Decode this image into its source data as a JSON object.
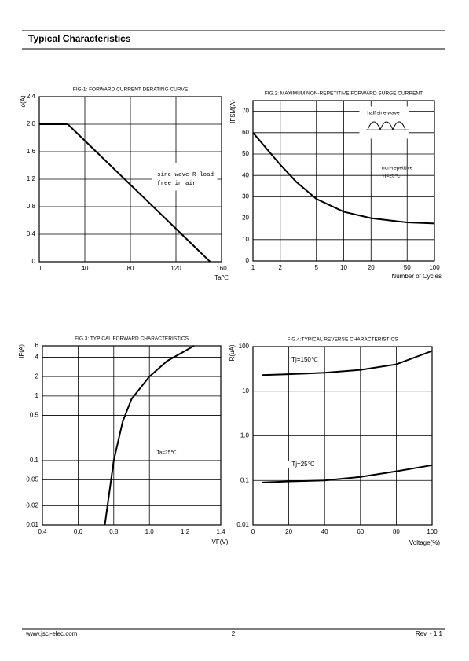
{
  "header": {
    "title": "Typical Characteristics"
  },
  "footer": {
    "website": "www.jscj-elec.com",
    "page": "2",
    "revision": "Rev. - 1.1"
  },
  "chart_data": [
    {
      "type": "line",
      "title": "FIG-1: FORWARD CURRENT  DERATING CURVE",
      "y_label": "Io(A)",
      "x_label": "Ta℃",
      "x": [
        0,
        25,
        150
      ],
      "values": [
        2,
        2,
        0
      ],
      "color": "#000000",
      "xlim": [
        0,
        160
      ],
      "xticks": [
        0,
        40,
        80,
        120,
        160
      ],
      "ylim": [
        0,
        2.4
      ],
      "yticks": [
        0,
        0.4,
        0.8,
        1.2,
        1.6,
        {
          "value": 2,
          "label": "2.0"
        },
        2.4
      ],
      "grid": true,
      "annotations": [
        "sine wave R-load",
        "free in air"
      ]
    },
    {
      "type": "line",
      "title": "FIG.2: MAXIMUM NON-REPETITIVE FORWARD SURGE CURRENT",
      "y_label": "IFSM(A)",
      "x_label": "Number of Cycles",
      "x": [
        1,
        2,
        3,
        5,
        10,
        20,
        50,
        100
      ],
      "values": [
        60,
        45,
        37,
        29,
        23,
        20,
        18,
        17.5
      ],
      "color": "#000000",
      "xlog": true,
      "xlim": [
        1,
        100
      ],
      "xticks": [
        1,
        2,
        5,
        10,
        20,
        50,
        100
      ],
      "ylim": [
        0,
        75
      ],
      "yticks": [
        0,
        10,
        20,
        30,
        40,
        50,
        60,
        70
      ],
      "grid": true,
      "annotations": [
        "half sine wave",
        "non-repetitive",
        "Tj=25℃"
      ]
    },
    {
      "type": "line",
      "title": "FIG.3: TYPICAL FORWARD CHARACTERISTICS",
      "y_label": "IF(A)",
      "x_label": "VF(V)",
      "x": [
        0.75,
        0.8,
        0.85,
        0.9,
        1.0,
        1.1,
        1.2,
        1.25
      ],
      "values": [
        0.01,
        0.1,
        0.4,
        0.9,
        2,
        3.5,
        5,
        6
      ],
      "color": "#000000",
      "xlim": [
        0.4,
        1.4
      ],
      "xticks": [
        0.4,
        0.6,
        0.8,
        {
          "value": 1,
          "label": "1.0"
        },
        1.2,
        1.4
      ],
      "ylog": true,
      "ylim": [
        0.01,
        6
      ],
      "yticks": [
        0.01,
        0.02,
        0.05,
        0.1,
        0.5,
        1,
        2,
        4,
        6
      ],
      "grid": true,
      "annotations": [
        "Ta=25℃"
      ]
    },
    {
      "type": "line",
      "title": "FIG.4:TYPICAL REVERSE CHARACTERISTICS",
      "y_label": "IR(uA)",
      "x_label": "Voltage(%)",
      "x": [
        5,
        20,
        40,
        60,
        80,
        100
      ],
      "series": [
        {
          "name": "Tj=150℃",
          "color": "#000000",
          "values": [
            23,
            24,
            26,
            30,
            40,
            80
          ]
        },
        {
          "name": "Tj=25℃",
          "color": "#000000",
          "values": [
            0.09,
            0.095,
            0.1,
            0.12,
            0.16,
            0.22
          ]
        }
      ],
      "xlim": [
        0,
        100
      ],
      "xticks": [
        0,
        20,
        40,
        60,
        80,
        100
      ],
      "ylog": true,
      "ylim": [
        0.01,
        100
      ],
      "yticks": [
        0.01,
        0.1,
        {
          "value": 1,
          "label": "1.0"
        },
        10,
        100
      ],
      "grid": true
    }
  ]
}
